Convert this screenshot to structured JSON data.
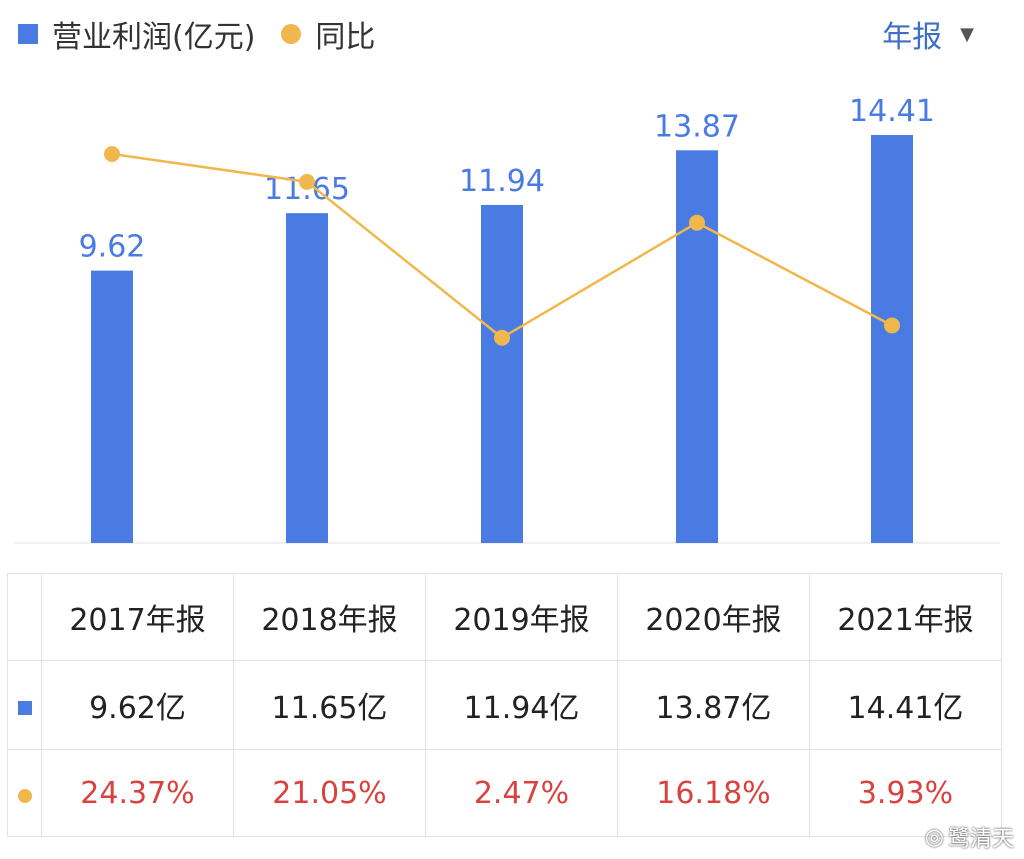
{
  "legend": {
    "series1": "营业利润(亿元)",
    "series2": "同比"
  },
  "period_selector": {
    "label": "年报",
    "icon": "caret-down-icon"
  },
  "colors": {
    "bar": "#4a7be3",
    "line": "#f0b84c",
    "yoy_text": "#d9433f",
    "period_text": "#3d6fc4"
  },
  "chart_data": {
    "type": "bar",
    "categories": [
      "2017年报",
      "2018年报",
      "2019年报",
      "2020年报",
      "2021年报"
    ],
    "series": [
      {
        "name": "营业利润(亿元)",
        "type": "bar",
        "values": [
          9.62,
          11.65,
          11.94,
          13.87,
          14.41
        ],
        "labels": [
          "9.62",
          "11.65",
          "11.94",
          "13.87",
          "14.41"
        ]
      },
      {
        "name": "同比",
        "type": "line",
        "values": [
          24.37,
          21.05,
          2.47,
          16.18,
          3.93
        ]
      }
    ],
    "ylim": [
      0,
      16
    ],
    "y2lim": [
      -22,
      32
    ],
    "grid": false
  },
  "table": {
    "headers": [
      "2017年报",
      "2018年报",
      "2019年报",
      "2020年报",
      "2021年报"
    ],
    "values": [
      "9.62亿",
      "11.65亿",
      "11.94亿",
      "13.87亿",
      "14.41亿"
    ],
    "yoy": [
      "24.37%",
      "21.05%",
      "2.47%",
      "16.18%",
      "3.93%"
    ]
  },
  "watermark": {
    "text": "鹭清天",
    "icon": "weibo-icon"
  }
}
